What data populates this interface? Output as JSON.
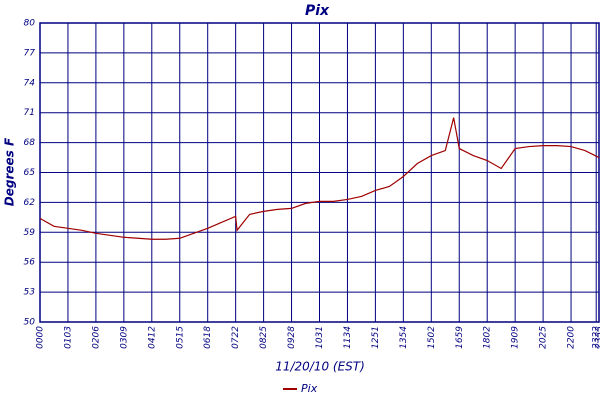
{
  "chart_data": {
    "type": "line",
    "title": "Pix",
    "xlabel": "11/20/10 (EST)",
    "ylabel": "Degrees F",
    "x": [
      0,
      0.5,
      1,
      1.5,
      2,
      2.5,
      3,
      3.5,
      4,
      4.5,
      5,
      5.5,
      6,
      6.5,
      7,
      7.05,
      7.5,
      8,
      8.5,
      9,
      9.5,
      10,
      10.5,
      11,
      11.5,
      12,
      12.5,
      13,
      13.5,
      14,
      14.5,
      14.8,
      15,
      15.5,
      16,
      16.5,
      17,
      17.5,
      18,
      18.5,
      19,
      19.5,
      20
    ],
    "series": [
      {
        "name": "Pix",
        "color": "#a00000",
        "values": [
          60.4,
          59.6,
          59.4,
          59.2,
          58.9,
          58.7,
          58.5,
          58.4,
          58.3,
          58.3,
          58.4,
          58.9,
          59.4,
          60.0,
          60.6,
          59.2,
          60.8,
          61.1,
          61.3,
          61.4,
          61.9,
          62.1,
          62.1,
          62.3,
          62.6,
          63.2,
          63.6,
          64.6,
          65.9,
          66.7,
          67.2,
          70.5,
          67.4,
          66.7,
          66.2,
          65.4,
          67.4,
          67.6,
          67.7,
          67.7,
          67.6,
          67.2,
          66.5
        ]
      }
    ],
    "xlim": [
      0,
      20
    ],
    "xticks": [
      {
        "value": 0,
        "label": "0000"
      },
      {
        "value": 1,
        "label": "0103"
      },
      {
        "value": 2,
        "label": "0206"
      },
      {
        "value": 3,
        "label": "0309"
      },
      {
        "value": 4,
        "label": "0412"
      },
      {
        "value": 5,
        "label": "0515"
      },
      {
        "value": 6,
        "label": "0618"
      },
      {
        "value": 7,
        "label": "0722"
      },
      {
        "value": 8,
        "label": "0825"
      },
      {
        "value": 9,
        "label": "0928"
      },
      {
        "value": 10,
        "label": "1031"
      },
      {
        "value": 11,
        "label": "1134"
      },
      {
        "value": 12,
        "label": "1251"
      },
      {
        "value": 13,
        "label": "1354"
      },
      {
        "value": 14,
        "label": "1502"
      },
      {
        "value": 15,
        "label": "1659"
      },
      {
        "value": 16,
        "label": "1802"
      },
      {
        "value": 17,
        "label": "1909"
      },
      {
        "value": 18,
        "label": "2025"
      },
      {
        "value": 19,
        "label": "2200"
      },
      {
        "value": 19.9,
        "label": "2322"
      },
      {
        "value": 20,
        "label": "2333"
      }
    ],
    "ylim": [
      50,
      80
    ],
    "yticks": [
      50,
      53,
      56,
      59,
      62,
      65,
      68,
      71,
      74,
      77,
      80
    ],
    "grid": true
  }
}
